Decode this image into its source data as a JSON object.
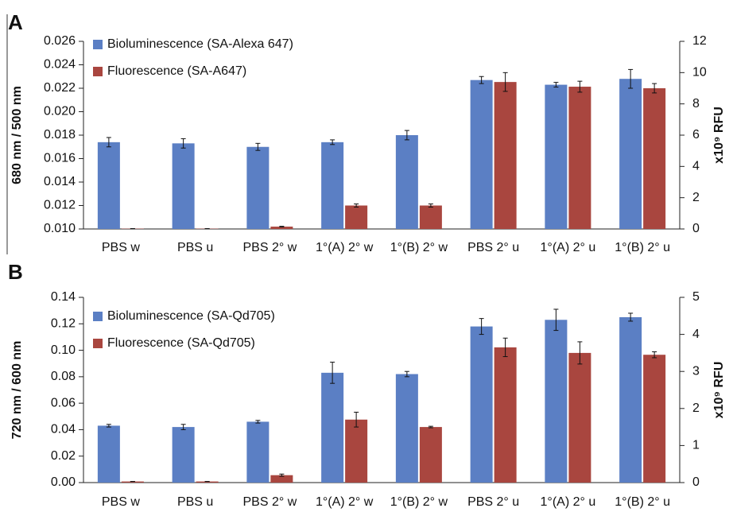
{
  "chart_data": [
    {
      "type": "bar",
      "panel_label": "A",
      "ylabel": "680 nm / 500 nm",
      "y2label": "x10⁹ RFU",
      "categories": [
        "PBS w",
        "PBS u",
        "PBS 2° w",
        "1°(A) 2° w",
        "1°(B) 2° w",
        "PBS 2° u",
        "1°(A) 2° u",
        "1°(B) 2° u"
      ],
      "series": [
        {
          "name": "Bioluminescence (SA-Alexa 647)",
          "color": "#5b7fc4",
          "axis": "y",
          "values": [
            0.0174,
            0.0173,
            0.017,
            0.0174,
            0.018,
            0.0227,
            0.0223,
            0.0228
          ],
          "errors": [
            0.0004,
            0.0004,
            0.0003,
            0.0002,
            0.0004,
            0.0003,
            0.0002,
            0.0008
          ]
        },
        {
          "name": "Fluorescence (SA-A647)",
          "color": "#a9463f",
          "axis": "y2",
          "values": [
            0.02,
            0.02,
            0.15,
            1.5,
            1.5,
            9.4,
            9.1,
            9.0
          ],
          "errors": [
            0,
            0,
            0.02,
            0.1,
            0.1,
            0.6,
            0.35,
            0.3
          ]
        }
      ],
      "ylim": [
        0.01,
        0.026
      ],
      "yticks": [
        {
          "value": 0.01,
          "label": "0.010"
        },
        {
          "value": 0.012,
          "label": "0.012"
        },
        {
          "value": 0.014,
          "label": "0.014"
        },
        {
          "value": 0.016,
          "label": "0.016"
        },
        {
          "value": 0.018,
          "label": "0.018"
        },
        {
          "value": 0.02,
          "label": "0.020"
        },
        {
          "value": 0.022,
          "label": "0.022"
        },
        {
          "value": 0.024,
          "label": "0.024"
        },
        {
          "value": 0.026,
          "label": "0.026"
        }
      ],
      "y2lim": [
        0,
        12
      ],
      "y2ticks": [
        0,
        2,
        4,
        6,
        8,
        10,
        12
      ]
    },
    {
      "type": "bar",
      "panel_label": "B",
      "ylabel": "720 nm / 600 nm",
      "y2label": "x10⁹ RFU",
      "categories": [
        "PBS w",
        "PBS u",
        "PBS 2° w",
        "1°(A) 2° w",
        "1°(B) 2° w",
        "PBS 2° u",
        "1°(A) 2° u",
        "1°(B) 2° u"
      ],
      "series": [
        {
          "name": "Bioluminescence (SA-Qd705)",
          "color": "#5b7fc4",
          "axis": "y",
          "values": [
            0.043,
            0.042,
            0.046,
            0.083,
            0.082,
            0.118,
            0.123,
            0.125
          ],
          "errors": [
            0.001,
            0.002,
            0.001,
            0.008,
            0.002,
            0.006,
            0.008,
            0.003
          ]
        },
        {
          "name": "Fluorescence (SA-Qd705)",
          "color": "#a9463f",
          "axis": "y2",
          "values": [
            0.03,
            0.03,
            0.2,
            1.7,
            1.5,
            3.65,
            3.5,
            3.45
          ],
          "errors": [
            0,
            0,
            0.03,
            0.2,
            0.02,
            0.25,
            0.3,
            0.08
          ]
        }
      ],
      "ylim": [
        0,
        0.14
      ],
      "yticks": [
        {
          "value": 0,
          "label": "0.00"
        },
        0.02,
        0.04,
        0.06,
        0.08,
        {
          "value": 0.1,
          "label": "0.10"
        },
        0.12,
        0.14
      ],
      "y2lim": [
        0,
        5
      ],
      "y2ticks": [
        0,
        1,
        2,
        3,
        4,
        5
      ]
    }
  ]
}
